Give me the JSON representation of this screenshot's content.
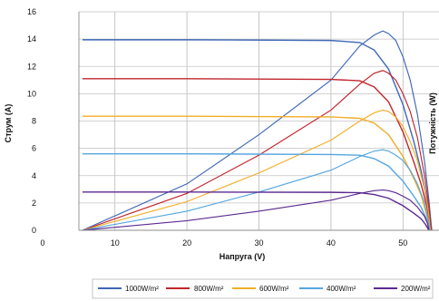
{
  "chart_data": {
    "type": "line",
    "title": "",
    "xlabel": "Напруга (V)",
    "ylabel": "Струм (А)",
    "y2label": "Потужність (W)",
    "xlim": [
      0,
      55
    ],
    "ylim": [
      0,
      16
    ],
    "x_ticks": [
      0,
      10,
      20,
      30,
      40,
      50
    ],
    "y_ticks": [
      0,
      2,
      4,
      6,
      8,
      10,
      12,
      14,
      16
    ],
    "grid": true,
    "legend_position": "bottom",
    "series": [
      {
        "name": "1000W/m²",
        "color": "#3f67b7",
        "current_points": [
          [
            5.5,
            13.95
          ],
          [
            20,
            13.95
          ],
          [
            40,
            13.9
          ],
          [
            44,
            13.75
          ],
          [
            46,
            13.2
          ],
          [
            48,
            11.8
          ],
          [
            50,
            9.2
          ],
          [
            51.5,
            6.5
          ],
          [
            52.5,
            4.4
          ],
          [
            53.3,
            2.3
          ],
          [
            54,
            0
          ]
        ],
        "power_points": [
          [
            5.5,
            0
          ],
          [
            20,
            3.4
          ],
          [
            30,
            7
          ],
          [
            40,
            11
          ],
          [
            44,
            13.5
          ],
          [
            46,
            14.3
          ],
          [
            47.2,
            14.6
          ],
          [
            48,
            14.4
          ],
          [
            49,
            13.9
          ],
          [
            50,
            12.7
          ],
          [
            51,
            11
          ],
          [
            52,
            8.5
          ],
          [
            53,
            5
          ],
          [
            53.6,
            2.2
          ],
          [
            54,
            0
          ]
        ]
      },
      {
        "name": "800W/m²",
        "color": "#c0262d",
        "current_points": [
          [
            5.5,
            11.1
          ],
          [
            20,
            11.1
          ],
          [
            40,
            11.05
          ],
          [
            44,
            10.95
          ],
          [
            46,
            10.5
          ],
          [
            48,
            9.4
          ],
          [
            50,
            7.2
          ],
          [
            51.5,
            5
          ],
          [
            52.5,
            3.4
          ],
          [
            53.3,
            1.8
          ],
          [
            53.9,
            0
          ]
        ],
        "power_points": [
          [
            5.5,
            0
          ],
          [
            20,
            2.7
          ],
          [
            30,
            5.5
          ],
          [
            40,
            8.8
          ],
          [
            44,
            10.7
          ],
          [
            46,
            11.5
          ],
          [
            47.2,
            11.7
          ],
          [
            48,
            11.5
          ],
          [
            49,
            11
          ],
          [
            50,
            10
          ],
          [
            51,
            8.7
          ],
          [
            52,
            6.8
          ],
          [
            53,
            4
          ],
          [
            53.6,
            1.8
          ],
          [
            53.9,
            0
          ]
        ]
      },
      {
        "name": "600W/m²",
        "color": "#f0ae27",
        "current_points": [
          [
            5.5,
            8.35
          ],
          [
            20,
            8.35
          ],
          [
            40,
            8.3
          ],
          [
            44,
            8.2
          ],
          [
            46,
            7.85
          ],
          [
            48,
            7
          ],
          [
            50,
            5.4
          ],
          [
            51.5,
            3.8
          ],
          [
            52.5,
            2.6
          ],
          [
            53.2,
            1.3
          ],
          [
            53.8,
            0
          ]
        ],
        "power_points": [
          [
            5.5,
            0
          ],
          [
            20,
            2.1
          ],
          [
            30,
            4.2
          ],
          [
            40,
            6.6
          ],
          [
            44,
            8
          ],
          [
            46,
            8.6
          ],
          [
            47.2,
            8.8
          ],
          [
            48,
            8.7
          ],
          [
            49,
            8.3
          ],
          [
            50,
            7.6
          ],
          [
            51,
            6.5
          ],
          [
            52,
            5.1
          ],
          [
            53,
            3
          ],
          [
            53.5,
            1.5
          ],
          [
            53.8,
            0
          ]
        ]
      },
      {
        "name": "400W/m²",
        "color": "#55a6df",
        "current_points": [
          [
            5.5,
            5.6
          ],
          [
            20,
            5.6
          ],
          [
            40,
            5.55
          ],
          [
            44,
            5.5
          ],
          [
            46,
            5.25
          ],
          [
            48,
            4.7
          ],
          [
            50,
            3.6
          ],
          [
            51.5,
            2.5
          ],
          [
            52.5,
            1.7
          ],
          [
            53.2,
            0.9
          ],
          [
            53.7,
            0
          ]
        ],
        "power_points": [
          [
            5.5,
            0
          ],
          [
            20,
            1.4
          ],
          [
            30,
            2.8
          ],
          [
            40,
            4.4
          ],
          [
            44,
            5.4
          ],
          [
            46,
            5.8
          ],
          [
            47.2,
            5.9
          ],
          [
            48,
            5.8
          ],
          [
            49,
            5.5
          ],
          [
            50,
            5.1
          ],
          [
            51,
            4.4
          ],
          [
            52,
            3.4
          ],
          [
            53,
            2
          ],
          [
            53.4,
            1
          ],
          [
            53.7,
            0
          ]
        ]
      },
      {
        "name": "200W/m²",
        "color": "#5b2a91",
        "current_points": [
          [
            5.5,
            2.8
          ],
          [
            20,
            2.8
          ],
          [
            40,
            2.78
          ],
          [
            44,
            2.75
          ],
          [
            46,
            2.62
          ],
          [
            48,
            2.35
          ],
          [
            50,
            1.8
          ],
          [
            51.5,
            1.25
          ],
          [
            52.5,
            0.85
          ],
          [
            53.1,
            0.45
          ],
          [
            53.6,
            0
          ]
        ],
        "power_points": [
          [
            5.5,
            0
          ],
          [
            20,
            0.7
          ],
          [
            30,
            1.4
          ],
          [
            40,
            2.2
          ],
          [
            44,
            2.7
          ],
          [
            46,
            2.9
          ],
          [
            47.2,
            2.95
          ],
          [
            48,
            2.9
          ],
          [
            49,
            2.75
          ],
          [
            50,
            2.5
          ],
          [
            51,
            2.2
          ],
          [
            52,
            1.7
          ],
          [
            53,
            1
          ],
          [
            53.4,
            0.5
          ],
          [
            53.6,
            0
          ]
        ]
      }
    ]
  }
}
